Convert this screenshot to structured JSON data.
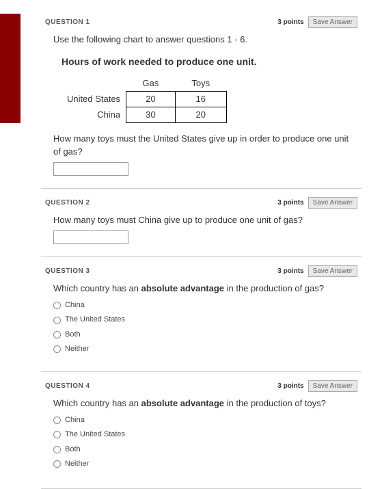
{
  "accent_color": "#8b0000",
  "save_button_label": "Save Answer",
  "q1": {
    "label": "QUESTION 1",
    "points": "3 points",
    "intro": "Use the following chart to answer questions 1 - 6.",
    "chart_title": "Hours of work needed to produce one unit.",
    "table": {
      "columns": [
        "Gas",
        "Toys"
      ],
      "rows": [
        {
          "label": "United States",
          "values": [
            "20",
            "16"
          ]
        },
        {
          "label": "China",
          "values": [
            "30",
            "20"
          ]
        }
      ]
    },
    "prompt": "How many toys must the United States give up in order to produce one unit of gas?"
  },
  "q2": {
    "label": "QUESTION 2",
    "points": "3 points",
    "prompt": "How many toys must China give up to produce one unit of gas?"
  },
  "q3": {
    "label": "QUESTION 3",
    "points": "3 points",
    "prompt_pre": "Which country has an ",
    "prompt_bold": "absolute advantage",
    "prompt_post": " in the production of gas?",
    "options": [
      "China",
      "The United States",
      "Both",
      "Neither"
    ]
  },
  "q4": {
    "label": "QUESTION 4",
    "points": "3 points",
    "prompt_pre": "Which country has an ",
    "prompt_bold": "absolute advantage",
    "prompt_post": " in the production of toys?",
    "options": [
      "China",
      "The United States",
      "Both",
      "Neither"
    ]
  }
}
